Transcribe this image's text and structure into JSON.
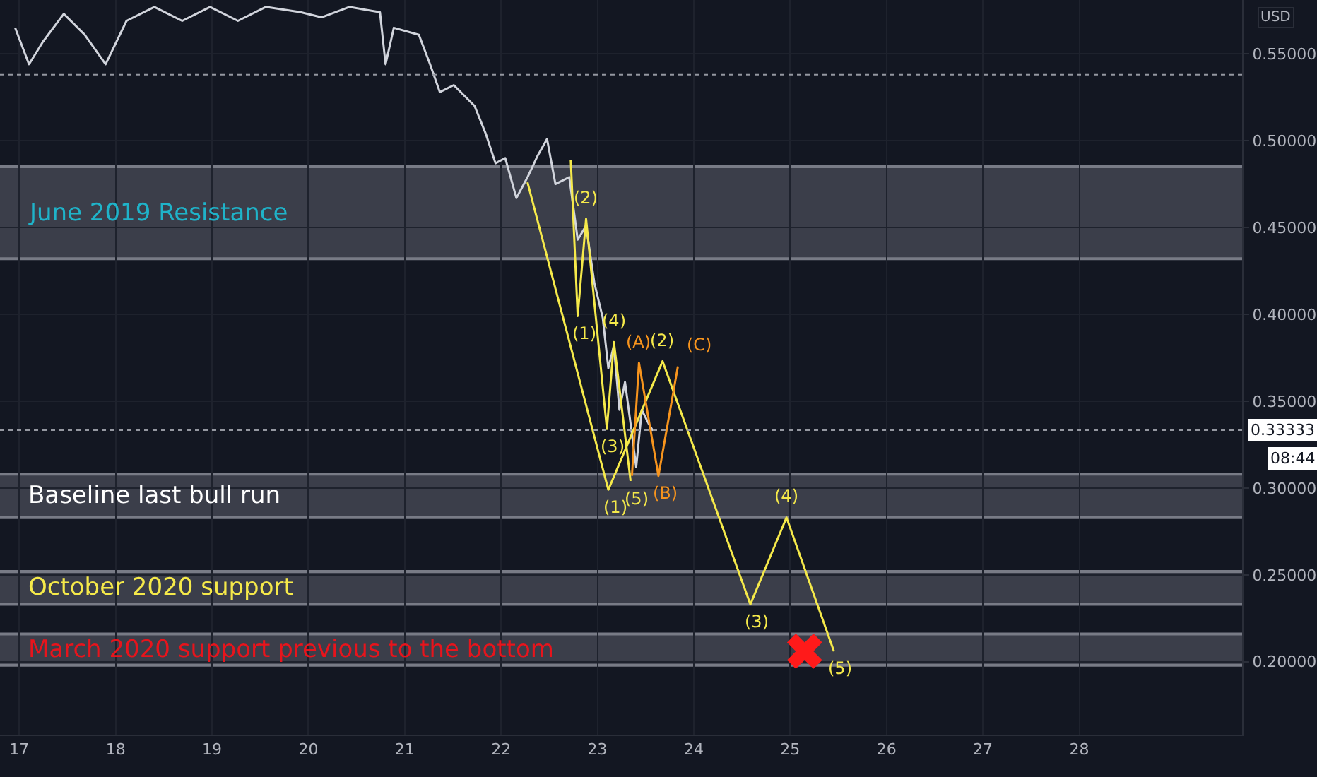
{
  "chart_data": {
    "type": "line",
    "xlim": [
      16.8,
      29.69
    ],
    "ylim": [
      0.158,
      0.581
    ],
    "xticks": [
      17,
      18,
      19,
      20,
      21,
      22,
      23,
      24,
      25,
      26,
      27,
      28
    ],
    "yticks": [
      {
        "value": 0.2,
        "label": "0.20000"
      },
      {
        "value": 0.25,
        "label": "0.25000"
      },
      {
        "value": 0.3,
        "label": "0.30000"
      },
      {
        "value": 0.35,
        "label": "0.35000"
      },
      {
        "value": 0.4,
        "label": "0.40000"
      },
      {
        "value": 0.45,
        "label": "0.45000"
      },
      {
        "value": 0.5,
        "label": "0.50000"
      },
      {
        "value": 0.55,
        "label": "0.55000"
      }
    ],
    "grid": true,
    "series": [
      {
        "color": "#d1d4dc",
        "x": [
          16.957,
          17.101,
          17.246,
          17.462,
          17.679,
          17.896,
          18.113,
          18.402,
          18.691,
          18.98,
          19.269,
          19.558,
          19.919,
          20.136,
          20.425,
          20.743,
          20.801,
          20.887,
          21.147,
          21.263,
          21.364,
          21.509,
          21.725,
          21.841,
          21.942,
          22.043,
          22.159,
          22.275,
          22.376,
          22.477,
          22.564,
          22.708,
          22.795,
          22.882,
          22.968,
          23.055,
          23.113,
          23.171,
          23.228,
          23.286,
          23.344,
          23.402,
          23.46,
          23.532,
          23.575
        ],
        "values": [
          0.565,
          0.544,
          0.557,
          0.573,
          0.561,
          0.544,
          0.569,
          0.577,
          0.569,
          0.577,
          0.569,
          0.577,
          0.574,
          0.571,
          0.577,
          0.574,
          0.544,
          0.565,
          0.561,
          0.544,
          0.528,
          0.532,
          0.52,
          0.504,
          0.487,
          0.49,
          0.467,
          0.479,
          0.491,
          0.501,
          0.475,
          0.479,
          0.443,
          0.451,
          0.418,
          0.398,
          0.369,
          0.382,
          0.345,
          0.361,
          0.337,
          0.312,
          0.345,
          0.337,
          0.333
        ]
      },
      {
        "color": "#f5e94a",
        "x": [
          22.274,
          23.113,
          23.676,
          24.587,
          24.962,
          25.454
        ],
        "values": [
          0.476,
          0.299,
          0.373,
          0.233,
          0.283,
          0.206
        ]
      },
      {
        "color": "#f5e94a",
        "x": [
          22.723,
          22.795,
          22.882,
          23.098,
          23.171,
          23.344
        ],
        "values": [
          0.489,
          0.399,
          0.455,
          0.334,
          0.384,
          0.304
        ]
      },
      {
        "color": "#f7941d",
        "x": [
          23.358,
          23.431,
          23.633,
          23.835
        ],
        "values": [
          0.307,
          0.372,
          0.307,
          0.37
        ]
      },
      {
        "type": "scatter",
        "marker": "cross",
        "color": "#ff1a1a",
        "x": [
          25.15
        ],
        "values": [
          0.206
        ]
      }
    ],
    "bands": [
      {
        "axis": "y",
        "from": 0.432,
        "to": 0.485,
        "label": "June 2019 Resistance",
        "color": "#787b86"
      },
      {
        "axis": "y",
        "from": 0.283,
        "to": 0.308,
        "label": "Baseline last bull run",
        "color": "#787b86"
      },
      {
        "axis": "y",
        "from": 0.233,
        "to": 0.252,
        "label": "October 2020 support",
        "color": "#787b86"
      },
      {
        "axis": "y",
        "from": 0.198,
        "to": 0.216,
        "label": "March 2020 support previous to the bottom",
        "color": "#787b86"
      }
    ],
    "ref_lines": [
      {
        "axis": "y",
        "value": 0.33333,
        "label": "0.33333",
        "line_style": "dotted"
      },
      {
        "axis": "y",
        "value": 0.538,
        "line_style": "dotted"
      }
    ],
    "annotations": [
      "USD",
      "08:44",
      {
        "text": "(1)",
        "x": 23.113,
        "y": 0.299
      },
      {
        "text": "(2)",
        "x": 23.676,
        "y": 0.373
      },
      {
        "text": "(3)",
        "x": 24.587,
        "y": 0.233
      },
      {
        "text": "(4)",
        "x": 24.962,
        "y": 0.283
      },
      {
        "text": "(5)",
        "x": 25.454,
        "y": 0.206
      },
      {
        "text": "(1)",
        "x": 22.795,
        "y": 0.399
      },
      {
        "text": "(2)",
        "x": 22.882,
        "y": 0.455
      },
      {
        "text": "(3)",
        "x": 23.098,
        "y": 0.334
      },
      {
        "text": "(4)",
        "x": 23.171,
        "y": 0.384
      },
      {
        "text": "(5)",
        "x": 23.344,
        "y": 0.304
      },
      {
        "text": "(A)",
        "x": 23.431,
        "y": 0.372
      },
      {
        "text": "(B)",
        "x": 23.633,
        "y": 0.307
      },
      {
        "text": "(C)",
        "x": 23.835,
        "y": 0.37
      }
    ]
  }
}
